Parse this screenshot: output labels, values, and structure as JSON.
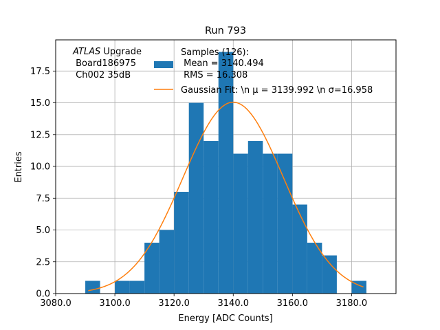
{
  "chart_data": {
    "type": "bar",
    "title": "Run 793",
    "xlabel": "Energy [ADC Counts]",
    "ylabel": "Entries",
    "xlim": [
      3080,
      3195
    ],
    "ylim": [
      0,
      19.95
    ],
    "grid": true,
    "x_ticks": [
      3080,
      3100,
      3120,
      3140,
      3160,
      3180
    ],
    "x_tick_labels": [
      "3080.0",
      "3100.0",
      "3120.0",
      "3140.0",
      "3160.0",
      "3180.0"
    ],
    "y_ticks": [
      0,
      2.5,
      5,
      7.5,
      10,
      12.5,
      15,
      17.5
    ],
    "y_tick_labels": [
      "0.0",
      "2.5",
      "5.0",
      "7.5",
      "10.0",
      "12.5",
      "15.0",
      "17.5"
    ],
    "histogram": {
      "name": "Samples (126):",
      "color": "#1f77b4",
      "bin_edges": [
        3090,
        3095,
        3100,
        3105,
        3110,
        3115,
        3120,
        3125,
        3130,
        3135,
        3140,
        3145,
        3150,
        3155,
        3160,
        3165,
        3170,
        3175,
        3180,
        3185
      ],
      "counts": [
        1,
        0,
        1,
        1,
        4,
        5,
        8,
        15,
        12,
        19,
        11,
        12,
        11,
        11,
        7,
        4,
        3,
        0,
        1
      ]
    },
    "fit": {
      "name": "Gaussian Fit",
      "color": "#ff7f0e",
      "mu": 3139.992,
      "sigma": 16.958,
      "amplitude": 15.05,
      "x_range": [
        3091,
        3184
      ]
    },
    "legend": {
      "position": "top-right",
      "samples_line1": "Samples (126):",
      "samples_line2": " Mean = 3140.494",
      "samples_line3": " RMS = 16.308",
      "fit_label": "Gaussian Fit: \\n μ = 3139.992 \\n σ=16.958"
    },
    "annotation": {
      "position": "top-left",
      "line1_italic": "ATLAS",
      "line1_rest": " Upgrade",
      "line2": " Board186975",
      "line3": " Ch002 35dB"
    }
  }
}
